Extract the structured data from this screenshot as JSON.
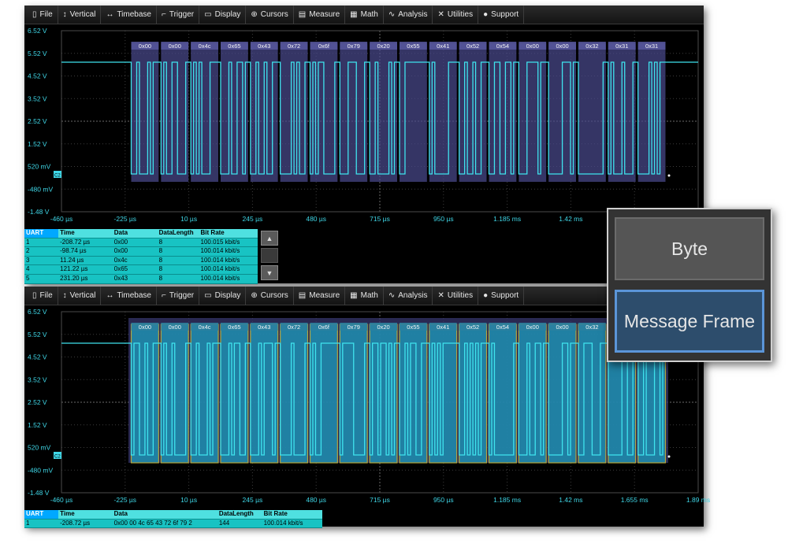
{
  "menubar": [
    {
      "icon": "file-icon",
      "glyph": "▯",
      "label": "File"
    },
    {
      "icon": "vertical-icon",
      "glyph": "↕",
      "label": "Vertical"
    },
    {
      "icon": "timebase-icon",
      "glyph": "↔",
      "label": "Timebase"
    },
    {
      "icon": "trigger-icon",
      "glyph": "⌐",
      "label": "Trigger"
    },
    {
      "icon": "display-icon",
      "glyph": "▭",
      "label": "Display"
    },
    {
      "icon": "cursors-icon",
      "glyph": "⊕",
      "label": "Cursors"
    },
    {
      "icon": "measure-icon",
      "glyph": "▤",
      "label": "Measure"
    },
    {
      "icon": "math-icon",
      "glyph": "▦",
      "label": "Math"
    },
    {
      "icon": "analysis-icon",
      "glyph": "∿",
      "label": "Analysis"
    },
    {
      "icon": "utilities-icon",
      "glyph": "✕",
      "label": "Utilities"
    },
    {
      "icon": "support-icon",
      "glyph": "●",
      "label": "Support"
    }
  ],
  "grid": {
    "y_labels": [
      "6.52 V",
      "5.52 V",
      "4.52 V",
      "3.52 V",
      "2.52 V",
      "1.52 V",
      "520 mV",
      "-480 mV",
      "-1.48 V"
    ],
    "x_labels_top": [
      "-460 µs",
      "-225 µs",
      "10 µs",
      "245 µs",
      "480 µs",
      "715 µs",
      "950 µs",
      "1.185 ms",
      "1.42 ms",
      "",
      ""
    ],
    "x_labels_bottom": [
      "-460 µs",
      "-225 µs",
      "10 µs",
      "245 µs",
      "480 µs",
      "715 µs",
      "950 µs",
      "1.185 ms",
      "1.42 ms",
      "1.655 ms",
      "1.89 ms"
    ],
    "channel_badge": "C2"
  },
  "bytes": [
    "0x00",
    "0x00",
    "0x4c",
    "0x65",
    "0x43",
    "0x72",
    "0x6f",
    "0x79",
    "0x20",
    "0x55",
    "0x41",
    "0x52",
    "0x54",
    "0x00",
    "0x00",
    "0x32",
    "0x31",
    "0x31"
  ],
  "top_table": {
    "headers": [
      "UART",
      "Time",
      "Data",
      "DataLength",
      "Bit Rate"
    ],
    "rows": [
      [
        "1",
        "-208.72 µs",
        "0x00",
        "8",
        "100.015 kbit/s"
      ],
      [
        "2",
        "-98.74 µs",
        "0x00",
        "8",
        "100.014 kbit/s"
      ],
      [
        "3",
        "11.24 µs",
        "0x4c",
        "8",
        "100.014 kbit/s"
      ],
      [
        "4",
        "121.22 µs",
        "0x65",
        "8",
        "100.014 kbit/s"
      ],
      [
        "5",
        "231.20 µs",
        "0x43",
        "8",
        "100.014 kbit/s"
      ]
    ]
  },
  "bottom_table": {
    "headers": [
      "UART",
      "Time",
      "Data",
      "DataLength",
      "Bit Rate"
    ],
    "rows": [
      [
        "1",
        "-208.72 µs",
        "0x00 00 4c 65 43 72 6f 79 2",
        "144",
        "100.014 kbit/s"
      ]
    ]
  },
  "popup": {
    "byte_label": "Byte",
    "frame_label": "Message Frame",
    "selected": "Message Frame"
  },
  "colors": {
    "trace": "#3fe3ee",
    "grid": "#3c3c3c",
    "byte_overlay": "#4a4a8c",
    "frame_overlay": "#1f96b8",
    "frame_outline": "#d8c43a",
    "selected_border": "#5b95d8"
  }
}
